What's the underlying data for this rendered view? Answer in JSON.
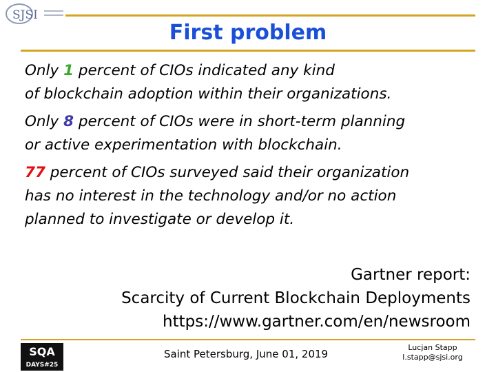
{
  "header": {
    "logo_text": "SJSI",
    "title": "First problem"
  },
  "paragraphs": [
    {
      "lead": "Only",
      "number": 1,
      "color": "#3aa82a",
      "rest": "percent of CIOs indicated any kind",
      "lines": [
        "of blockchain adoption within their organizations."
      ]
    },
    {
      "lead": "Only",
      "number": 8,
      "color": "#3f3aa8",
      "rest": "percent of CIOs were in short-term planning",
      "lines": [
        "or active experimentation with blockchain."
      ]
    },
    {
      "number": 77,
      "color": "#e01010",
      "rest": "percent of CIOs surveyed said their organization",
      "lines": [
        "has no interest in the technology and/or no action",
        "planned to investigate or develop it."
      ]
    }
  ],
  "reference": [
    "Gartner report:",
    "Scarcity of Current Blockchain Deployments",
    "https://www.gartner.com/en/newsroom"
  ],
  "footer": {
    "logo_top": "SQA",
    "logo_bottom": "DAYS#25",
    "place_date": "Saint Petersburg, June 01, 2019",
    "author": "Lucjan Stapp",
    "email": "l.stapp@sjsi.org"
  }
}
